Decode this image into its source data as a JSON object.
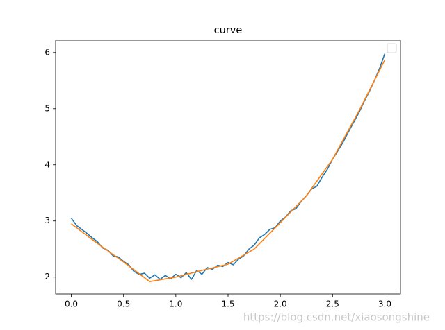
{
  "chart_data": {
    "type": "line",
    "title": "curve",
    "series": [
      {
        "color": "#1f77b4",
        "x": [
          0,
          0.05,
          0.1,
          0.15,
          0.2,
          0.25,
          0.3,
          0.35,
          0.4,
          0.45,
          0.5,
          0.55,
          0.6,
          0.65,
          0.7,
          0.75,
          0.8,
          0.85,
          0.9,
          0.95,
          1.0,
          1.05,
          1.1,
          1.15,
          1.2,
          1.25,
          1.3,
          1.35,
          1.4,
          1.45,
          1.5,
          1.55,
          1.6,
          1.65,
          1.7,
          1.75,
          1.8,
          1.85,
          1.9,
          1.95,
          2.0,
          2.05,
          2.1,
          2.15,
          2.2,
          2.25,
          2.3,
          2.35,
          2.4,
          2.45,
          2.5,
          2.55,
          2.6,
          2.65,
          2.7,
          2.75,
          2.8,
          2.85,
          2.9,
          2.95,
          3.0
        ],
        "values": [
          3.05,
          2.92,
          2.85,
          2.78,
          2.7,
          2.63,
          2.52,
          2.48,
          2.38,
          2.36,
          2.28,
          2.22,
          2.1,
          2.05,
          2.07,
          1.98,
          2.04,
          1.96,
          2.03,
          1.97,
          2.05,
          1.99,
          2.08,
          1.96,
          2.12,
          2.05,
          2.17,
          2.14,
          2.21,
          2.19,
          2.26,
          2.22,
          2.32,
          2.38,
          2.5,
          2.57,
          2.7,
          2.76,
          2.85,
          2.88,
          3.0,
          3.07,
          3.18,
          3.22,
          3.35,
          3.45,
          3.57,
          3.62,
          3.78,
          3.92,
          4.1,
          4.25,
          4.4,
          4.58,
          4.75,
          4.92,
          5.12,
          5.3,
          5.5,
          5.72,
          5.98
        ]
      },
      {
        "color": "#ff7f0e",
        "x": [
          0,
          0.25,
          0.5,
          0.75,
          1.0,
          1.25,
          1.5,
          1.75,
          2.0,
          2.25,
          2.5,
          2.75,
          3.0
        ],
        "values": [
          2.95,
          2.6,
          2.27,
          1.92,
          2.0,
          2.12,
          2.23,
          2.5,
          2.97,
          3.45,
          4.1,
          4.95,
          5.87
        ]
      }
    ],
    "xlim": [
      -0.15,
      3.15
    ],
    "ylim": [
      1.7,
      6.22
    ],
    "xticks": [
      {
        "value": 0,
        "label": "0.0"
      },
      {
        "value": 0.5,
        "label": "0.5"
      },
      {
        "value": 1,
        "label": "1.0"
      },
      {
        "value": 1.5,
        "label": "1.5"
      },
      {
        "value": 2,
        "label": "2.0"
      },
      {
        "value": 2.5,
        "label": "2.5"
      },
      {
        "value": 3,
        "label": "3.0"
      }
    ],
    "yticks": [
      2,
      3,
      4,
      5,
      6
    ],
    "grid": false,
    "legend": "upper right"
  },
  "watermark": "https://blog.csdn.net/xiaosongshine"
}
